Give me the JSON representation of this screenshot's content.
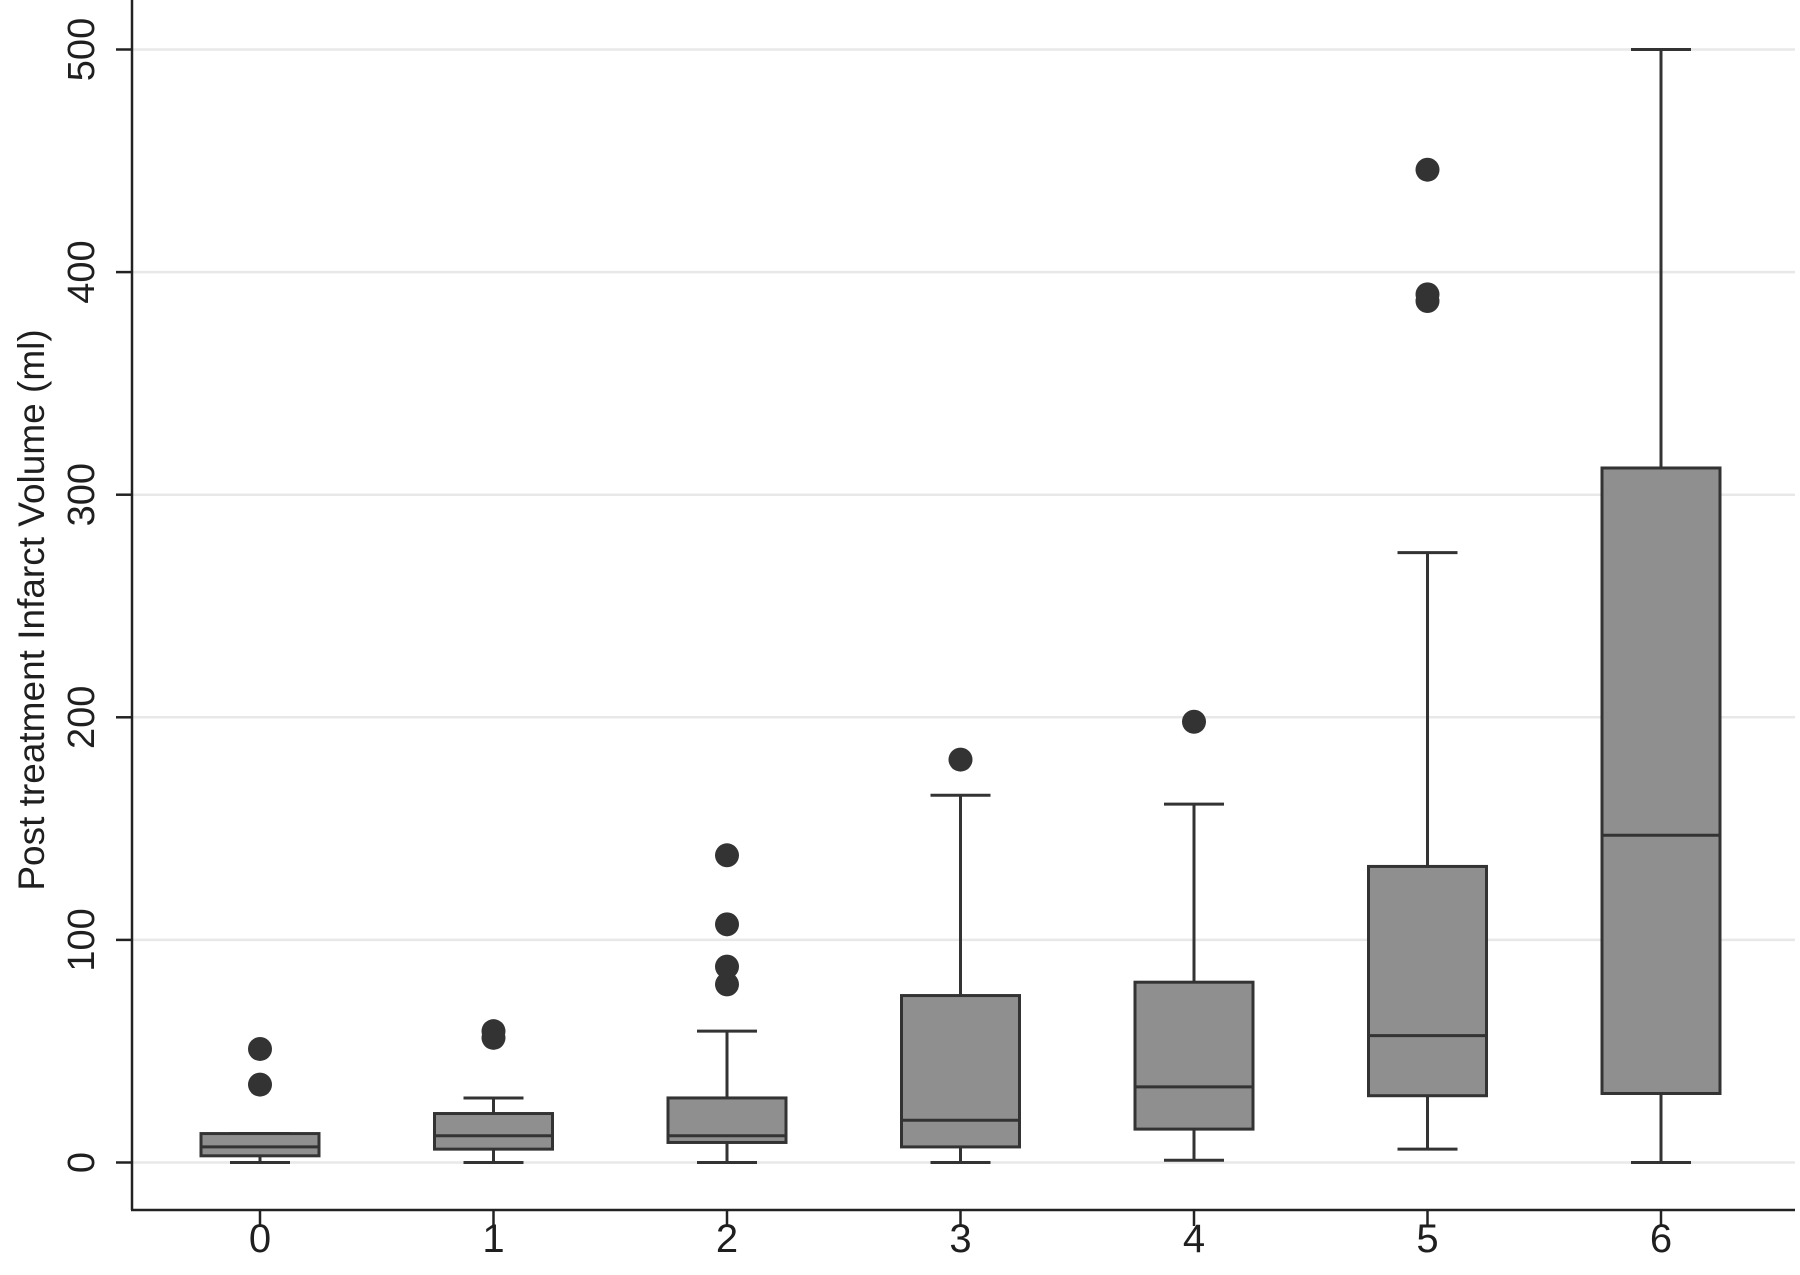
{
  "chart_data": {
    "type": "box",
    "title": "",
    "xlabel": "",
    "ylabel": "Post treatment Infarct Volume (ml)",
    "ylim": [
      -20,
      520
    ],
    "yticks": [
      0,
      100,
      200,
      300,
      400,
      500
    ],
    "ytick_labels": [
      "0",
      "100",
      "200",
      "300",
      "400",
      "500"
    ],
    "grid": true,
    "grid_color": "#e8e8e8",
    "box_fill": "#8f8f8f",
    "line_color": "#333333",
    "categories": [
      "0",
      "1",
      "2",
      "3",
      "4",
      "5",
      "6"
    ],
    "boxes": [
      {
        "category": "0",
        "whisker_low": 0,
        "q1": 3,
        "median": 7,
        "q3": 13,
        "whisker_high": 13,
        "outliers": [
          35,
          51
        ]
      },
      {
        "category": "1",
        "whisker_low": 0,
        "q1": 6,
        "median": 12,
        "q3": 22,
        "whisker_high": 29,
        "outliers": [
          56,
          59
        ]
      },
      {
        "category": "2",
        "whisker_low": 0,
        "q1": 9,
        "median": 12,
        "q3": 29,
        "whisker_high": 59,
        "outliers": [
          80,
          88,
          107,
          138
        ]
      },
      {
        "category": "3",
        "whisker_low": 0,
        "q1": 7,
        "median": 19,
        "q3": 75,
        "whisker_high": 165,
        "outliers": [
          181
        ]
      },
      {
        "category": "4",
        "whisker_low": 1,
        "q1": 15,
        "median": 34,
        "q3": 81,
        "whisker_high": 161,
        "outliers": [
          198
        ]
      },
      {
        "category": "5",
        "whisker_low": 6,
        "q1": 30,
        "median": 57,
        "q3": 133,
        "whisker_high": 274,
        "outliers": [
          387,
          390,
          446
        ]
      },
      {
        "category": "6",
        "whisker_low": 0,
        "q1": 31,
        "median": 147,
        "q3": 312,
        "whisker_high": 500,
        "outliers": []
      }
    ]
  }
}
